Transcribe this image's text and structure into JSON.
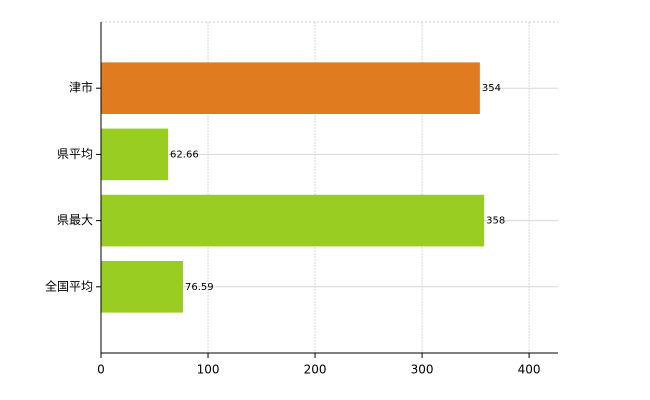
{
  "chart_data": {
    "type": "hbar",
    "categories": [
      "津市",
      "県平均",
      "県最大",
      "全国平均"
    ],
    "values": [
      354,
      62.66,
      358,
      76.59
    ],
    "colors": [
      "#e07b1f",
      "#9acd22",
      "#9acd22",
      "#9acd22"
    ],
    "xlim": [
      0,
      427
    ],
    "xticks": [
      0,
      100,
      200,
      300,
      400
    ],
    "grid": true
  }
}
